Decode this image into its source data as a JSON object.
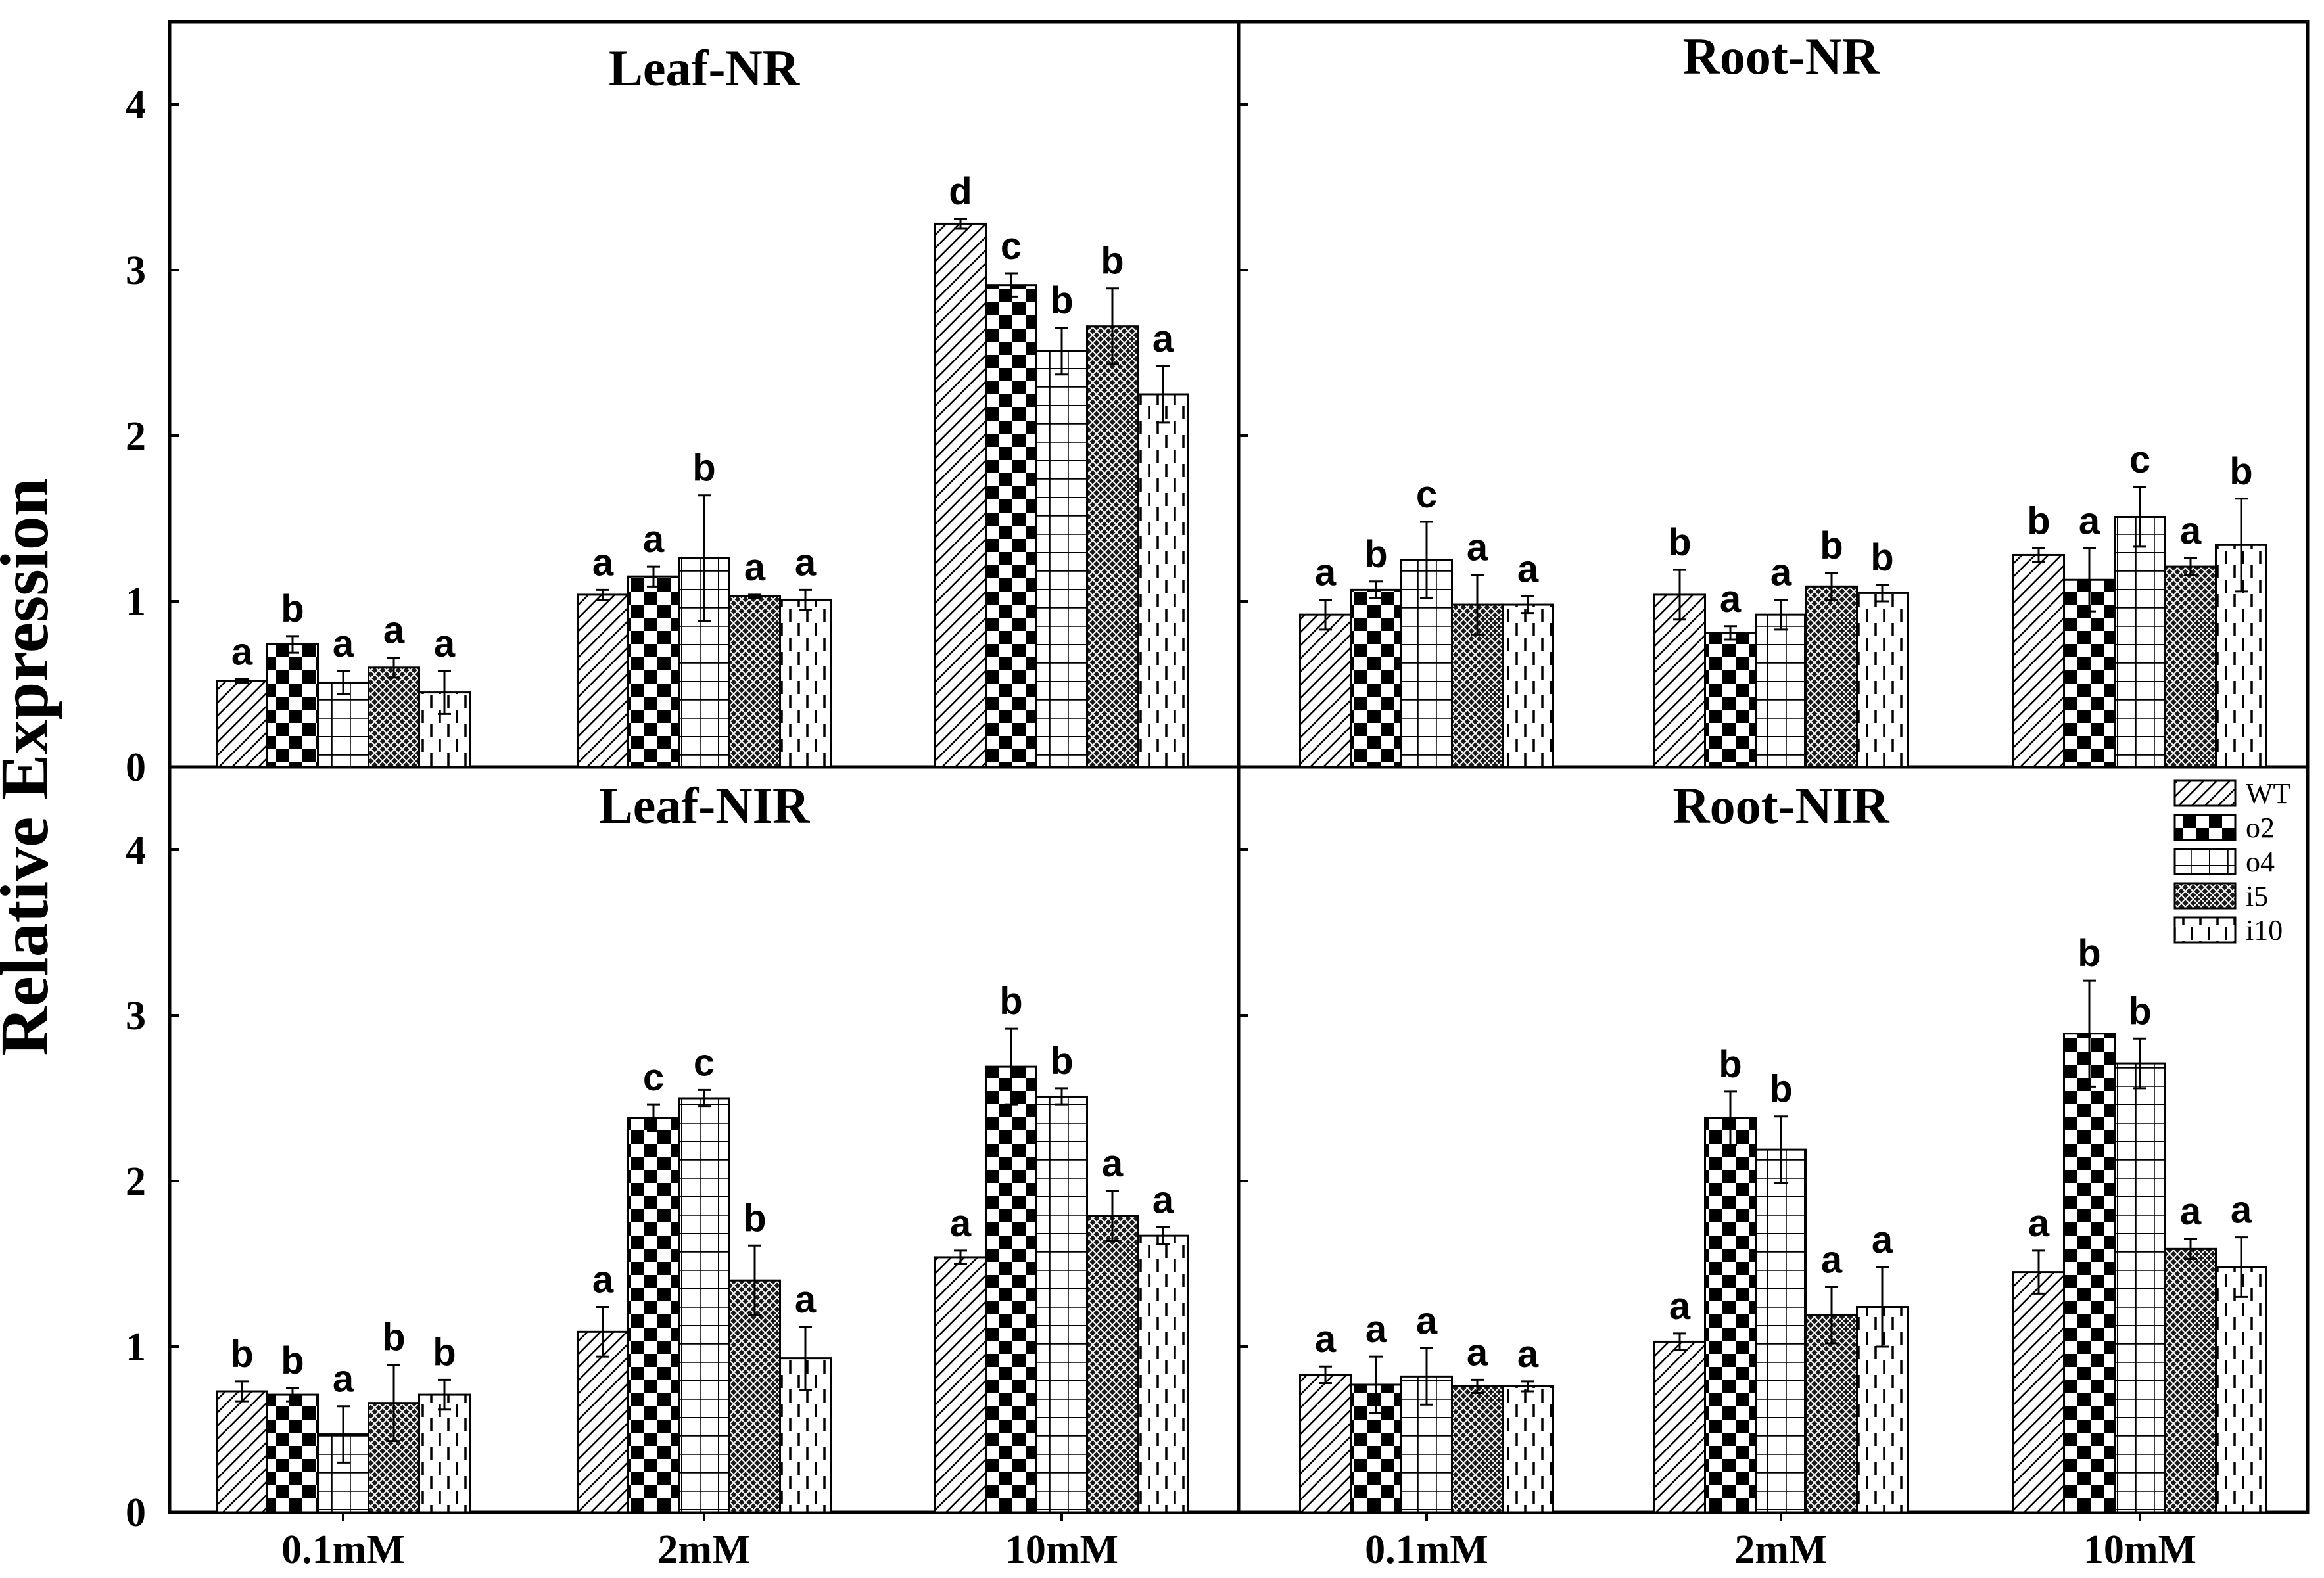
{
  "chart_data": {
    "type": "bar",
    "ylabel": "Relative Expression",
    "ylim": [
      0,
      4.4
    ],
    "yticks": [
      "0",
      "1",
      "2",
      "3",
      "4"
    ],
    "categories": [
      "0.1mM",
      "2mM",
      "10mM"
    ],
    "legend": {
      "placement": "right, inside Root-NIR panel",
      "entries": [
        "WT",
        "o2",
        "o4",
        "i5",
        "i10"
      ]
    },
    "panels": [
      {
        "title": "Leaf-NR",
        "series": [
          {
            "name": "WT",
            "values": [
              0.52,
              1.04,
              3.28
            ],
            "errors": [
              0.01,
              0.03,
              0.03
            ],
            "letters": [
              "a",
              "a",
              "d"
            ]
          },
          {
            "name": "o2",
            "values": [
              0.74,
              1.15,
              2.91
            ],
            "errors": [
              0.05,
              0.06,
              0.07
            ],
            "letters": [
              "b",
              "a",
              "c"
            ]
          },
          {
            "name": "o4",
            "values": [
              0.51,
              1.26,
              2.51
            ],
            "errors": [
              0.07,
              0.38,
              0.14
            ],
            "letters": [
              "a",
              "b",
              "b"
            ]
          },
          {
            "name": "i5",
            "values": [
              0.6,
              1.03,
              2.66
            ],
            "errors": [
              0.06,
              0.01,
              0.23
            ],
            "letters": [
              "a",
              "a",
              "b"
            ]
          },
          {
            "name": "i10",
            "values": [
              0.45,
              1.01,
              2.25
            ],
            "errors": [
              0.13,
              0.06,
              0.17
            ],
            "letters": [
              "a",
              "a",
              "a"
            ]
          }
        ]
      },
      {
        "title": "Root-NR",
        "series": [
          {
            "name": "WT",
            "values": [
              0.92,
              1.04,
              1.28
            ],
            "errors": [
              0.09,
              0.15,
              0.04
            ],
            "letters": [
              "a",
              "b",
              "b"
            ]
          },
          {
            "name": "o2",
            "values": [
              1.07,
              0.81,
              1.13
            ],
            "errors": [
              0.05,
              0.04,
              0.19
            ],
            "letters": [
              "b",
              "a",
              "a"
            ]
          },
          {
            "name": "o4",
            "values": [
              1.25,
              0.92,
              1.51
            ],
            "errors": [
              0.23,
              0.09,
              0.18
            ],
            "letters": [
              "c",
              "a",
              "c"
            ]
          },
          {
            "name": "i5",
            "values": [
              0.98,
              1.09,
              1.21
            ],
            "errors": [
              0.18,
              0.08,
              0.05
            ],
            "letters": [
              "a",
              "b",
              "a"
            ]
          },
          {
            "name": "i10",
            "values": [
              0.98,
              1.05,
              1.34
            ],
            "errors": [
              0.05,
              0.05,
              0.28
            ],
            "letters": [
              "a",
              "b",
              "b"
            ]
          }
        ]
      },
      {
        "title": "Leaf-NIR",
        "series": [
          {
            "name": "WT",
            "values": [
              0.73,
              1.09,
              1.54
            ],
            "errors": [
              0.06,
              0.15,
              0.04
            ],
            "letters": [
              "b",
              "a",
              "a"
            ]
          },
          {
            "name": "o2",
            "values": [
              0.71,
              2.38,
              2.69
            ],
            "errors": [
              0.04,
              0.08,
              0.23
            ],
            "letters": [
              "b",
              "c",
              "b"
            ]
          },
          {
            "name": "o4",
            "values": [
              0.47,
              2.5,
              2.51
            ],
            "errors": [
              0.17,
              0.05,
              0.05
            ],
            "letters": [
              "a",
              "c",
              "b"
            ]
          },
          {
            "name": "i5",
            "values": [
              0.66,
              1.4,
              1.79
            ],
            "errors": [
              0.23,
              0.21,
              0.15
            ],
            "letters": [
              "b",
              "b",
              "a"
            ]
          },
          {
            "name": "i10",
            "values": [
              0.71,
              0.93,
              1.67
            ],
            "errors": [
              0.09,
              0.19,
              0.05
            ],
            "letters": [
              "b",
              "a",
              "a"
            ]
          }
        ]
      },
      {
        "title": "Root-NIR",
        "series": [
          {
            "name": "WT",
            "values": [
              0.83,
              1.03,
              1.45
            ],
            "errors": [
              0.05,
              0.05,
              0.13
            ],
            "letters": [
              "a",
              "a",
              "a"
            ]
          },
          {
            "name": "o2",
            "values": [
              0.77,
              2.38,
              2.89
            ],
            "errors": [
              0.17,
              0.16,
              0.32
            ],
            "letters": [
              "a",
              "b",
              "b"
            ]
          },
          {
            "name": "o4",
            "values": [
              0.82,
              2.19,
              2.71
            ],
            "errors": [
              0.17,
              0.2,
              0.15
            ],
            "letters": [
              "a",
              "b",
              "b"
            ]
          },
          {
            "name": "i5",
            "values": [
              0.76,
              1.19,
              1.59
            ],
            "errors": [
              0.04,
              0.17,
              0.06
            ],
            "letters": [
              "a",
              "a",
              "a"
            ]
          },
          {
            "name": "i10",
            "values": [
              0.76,
              1.24,
              1.48
            ],
            "errors": [
              0.03,
              0.24,
              0.18
            ],
            "letters": [
              "a",
              "a",
              "a"
            ]
          }
        ]
      }
    ]
  },
  "patterns": {
    "WT": "diagonal-hatch",
    "o2": "checkerboard",
    "o4": "grid",
    "i5": "crosshatch-dense",
    "i10": "dashed-vertical"
  },
  "colors": {
    "ink": "#000000",
    "background": "#ffffff"
  }
}
